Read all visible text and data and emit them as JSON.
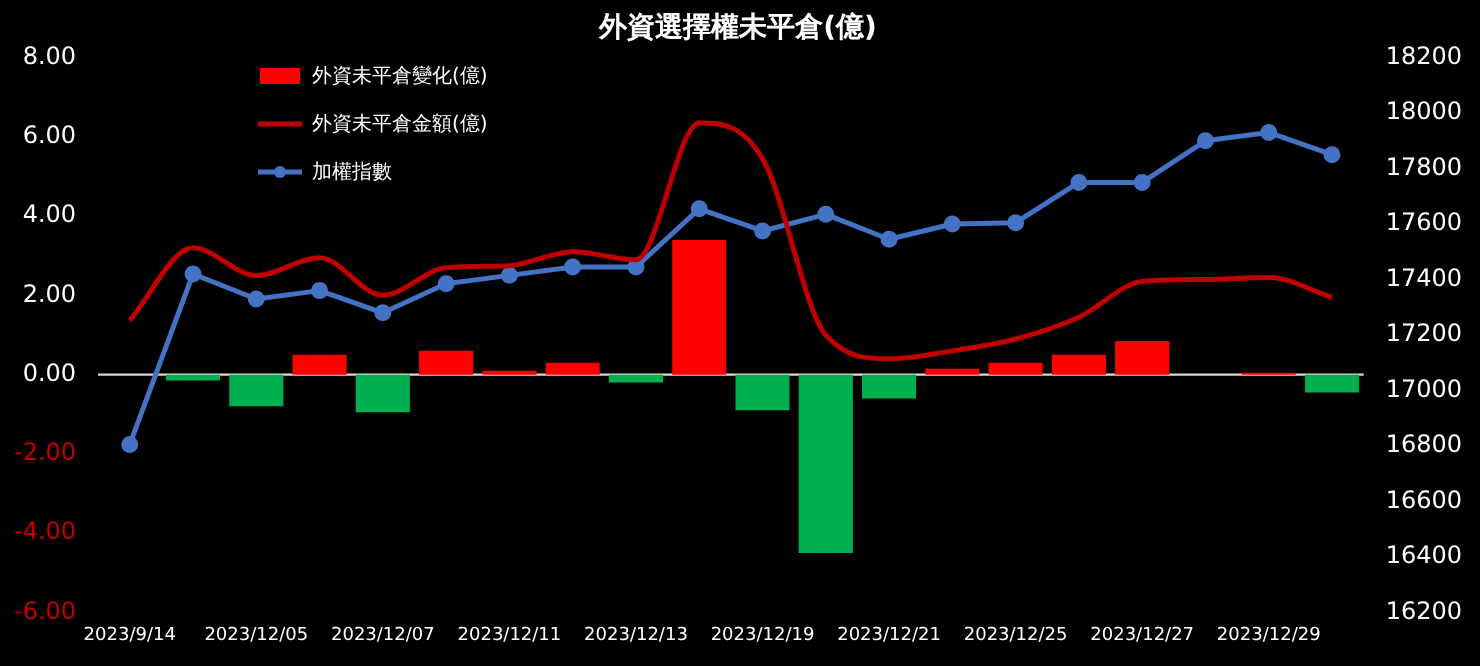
{
  "chart_data": {
    "type": "bar",
    "title": "外資選擇權未平倉(億)",
    "legend": "top left",
    "categories": [
      "2023/9/14",
      null,
      "2023/12/05",
      null,
      "2023/12/07",
      null,
      "2023/12/11",
      null,
      "2023/12/13",
      null,
      "2023/12/19",
      null,
      "2023/12/21",
      null,
      "2023/12/25",
      null,
      "2023/12/27",
      null,
      "2023/12/29",
      null
    ],
    "series": [
      {
        "name": "外資未平倉變化(億)",
        "color": "#ff0000",
        "colors": [
          "#ff0000",
          "#00b050",
          "#00b050",
          "#ff0000",
          "#00b050",
          "#ff0000",
          "#ff0000",
          "#ff0000",
          "#00b050",
          "#ff0000",
          "#00b050",
          "#00b050",
          "#00b050",
          "#ff0000",
          "#ff0000",
          "#ff0000",
          "#ff0000",
          "#ff0000",
          "#ff0000",
          "#00b050"
        ],
        "values": [
          0,
          -0.15,
          -0.8,
          0.5,
          -0.95,
          0.6,
          0.1,
          0.3,
          -0.2,
          3.4,
          -0.9,
          -4.5,
          -0.6,
          0.15,
          0.3,
          0.5,
          0.85,
          0,
          0.05,
          -0.45
        ]
      },
      {
        "name": "外資未平倉金額(億)",
        "type": "line",
        "color": "#c00000",
        "marker": "none",
        "values": [
          1.37,
          3.2,
          2.5,
          2.95,
          2.0,
          2.7,
          2.75,
          3.1,
          2.9,
          6.35,
          5.45,
          1.0,
          0.4,
          0.6,
          0.9,
          1.45,
          2.35,
          2.4,
          2.45,
          1.95
        ]
      },
      {
        "name": "加權指數",
        "type": "line",
        "axis": "y2",
        "color": "#4472c4",
        "marker": "circle",
        "values": [
          16805,
          17420,
          17330,
          17360,
          17280,
          17385,
          17415,
          17445,
          17445,
          17655,
          17575,
          17635,
          17545,
          17600,
          17605,
          17750,
          17750,
          17900,
          17930,
          17850
        ]
      }
    ],
    "ylim": [
      -6,
      8
    ],
    "yticks": [
      {
        "value": -6,
        "label": "-6.00"
      },
      {
        "value": -4,
        "label": "-4.00"
      },
      {
        "value": -2,
        "label": "-2.00"
      },
      {
        "value": 0,
        "label": "0.00"
      },
      {
        "value": 2,
        "label": "2.00"
      },
      {
        "value": 4,
        "label": "4.00"
      },
      {
        "value": 6,
        "label": "6.00"
      },
      {
        "value": 8,
        "label": "8.00"
      }
    ],
    "y2lim": [
      16200,
      18200
    ],
    "y2ticks": [
      16200,
      16400,
      16600,
      16800,
      17000,
      17200,
      17400,
      17600,
      17800,
      18000,
      18200
    ]
  }
}
